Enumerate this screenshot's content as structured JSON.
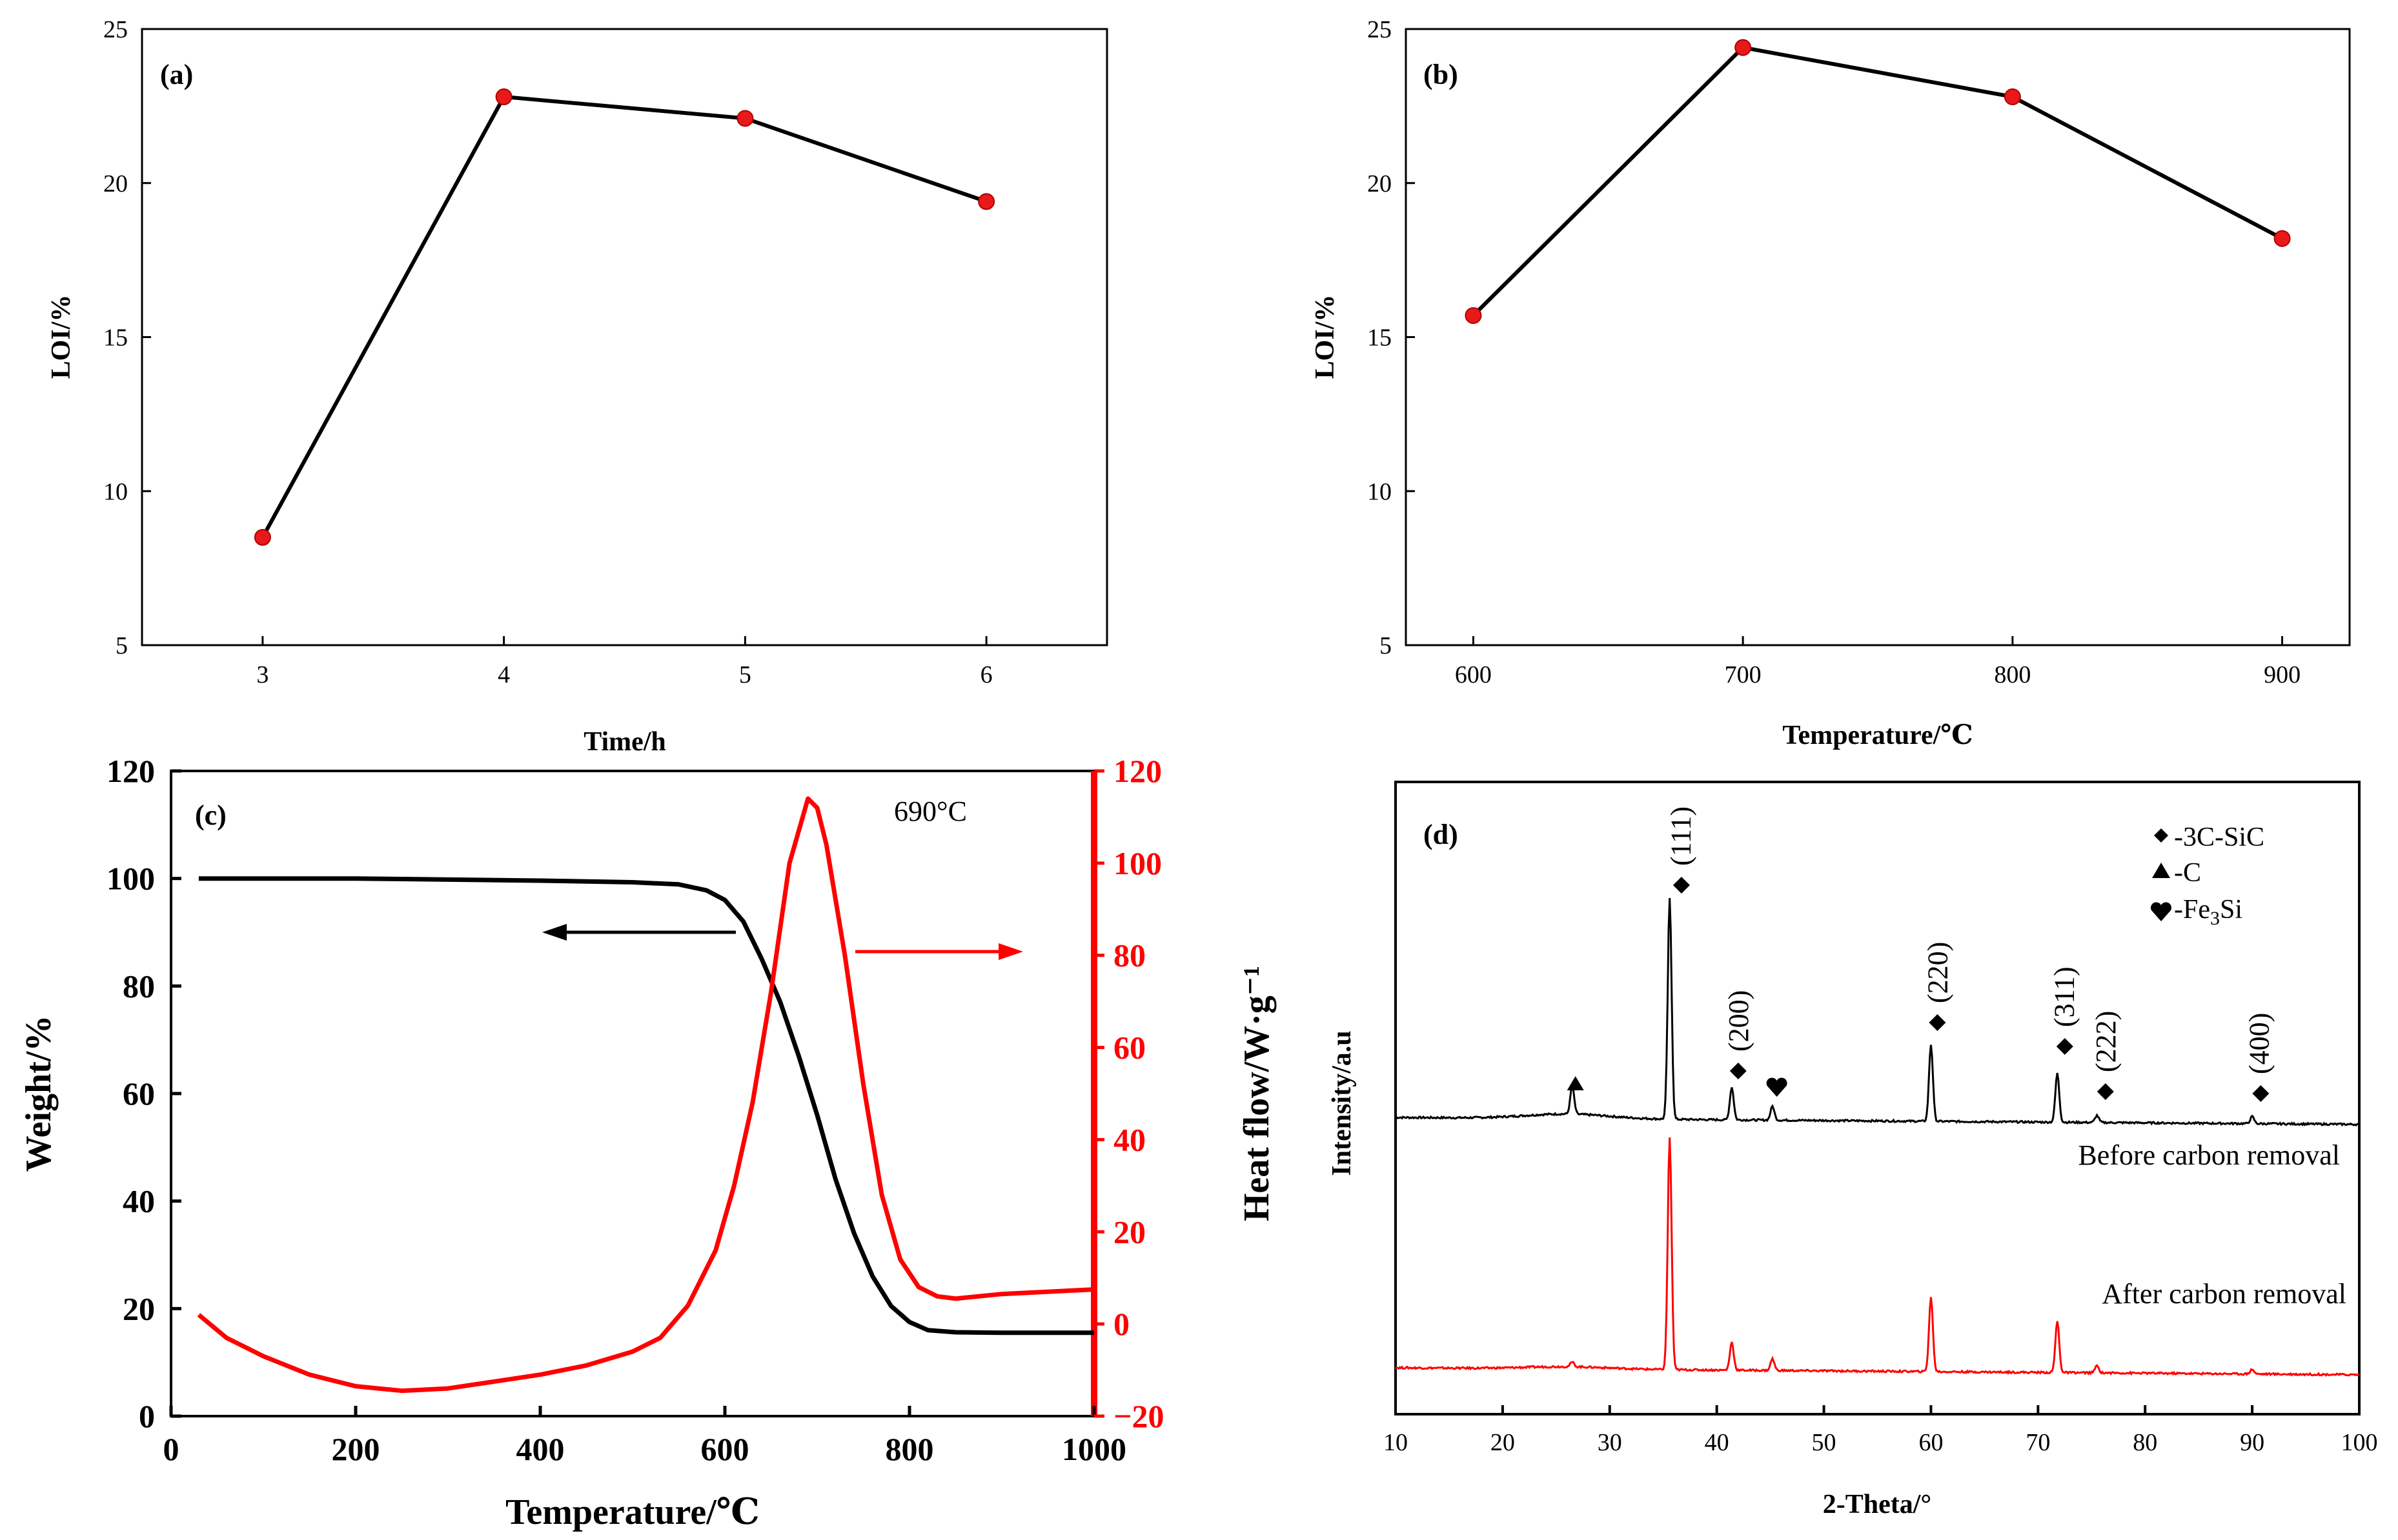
{
  "colors": {
    "line": "#000000",
    "accent": "#ff0000",
    "marker": "#e8191a"
  },
  "chart_data": [
    {
      "id": "a",
      "type": "line",
      "panel_label": "(a)",
      "xlabel": "Time/h",
      "ylabel": "LOI/%",
      "x": [
        3,
        4,
        5,
        6
      ],
      "y": [
        8.5,
        22.8,
        22.1,
        19.4
      ],
      "xticks": [
        "3",
        "4",
        "5",
        "6"
      ],
      "yticks": [
        "5",
        "10",
        "15",
        "20",
        "25"
      ],
      "xlim": [
        2.5,
        6.5
      ],
      "ylim": [
        5,
        25
      ]
    },
    {
      "id": "b",
      "type": "line",
      "panel_label": "(b)",
      "xlabel": "Temperature/℃",
      "ylabel": "LOI/%",
      "x": [
        600,
        700,
        800,
        900
      ],
      "y": [
        15.7,
        24.4,
        22.8,
        18.2
      ],
      "xticks": [
        "600",
        "700",
        "800",
        "900"
      ],
      "yticks": [
        "5",
        "10",
        "15",
        "20",
        "25"
      ],
      "xlim": [
        575,
        925
      ],
      "ylim": [
        5,
        25
      ]
    },
    {
      "id": "c",
      "type": "line",
      "panel_label": "(c)",
      "xlabel": "Temperature/℃",
      "ylabel": "Weight/%",
      "ylabel_right": "Heat flow/W·g⁻¹",
      "annotation": "690°C",
      "xticks": [
        "0",
        "200",
        "400",
        "600",
        "800",
        "1000"
      ],
      "yticks": [
        "0",
        "20",
        "40",
        "60",
        "80",
        "100",
        "120"
      ],
      "yticks_right": [
        "−20",
        "0",
        "20",
        "40",
        "60",
        "80",
        "100",
        "120"
      ],
      "xlim": [
        0,
        1000
      ],
      "ylim": [
        0,
        120
      ],
      "ylim_right": [
        -20,
        120
      ],
      "series": [
        {
          "name": "Weight",
          "axis": "left",
          "x": [
            30,
            200,
            400,
            500,
            550,
            580,
            600,
            620,
            640,
            660,
            680,
            700,
            720,
            740,
            760,
            780,
            800,
            820,
            850,
            900,
            1000
          ],
          "y": [
            100,
            100,
            99.6,
            99.3,
            98.9,
            97.8,
            96,
            92,
            85,
            77,
            67,
            56,
            44,
            34,
            26,
            20.5,
            17.5,
            16,
            15.6,
            15.5,
            15.5
          ]
        },
        {
          "name": "Heat flow",
          "axis": "right",
          "x": [
            30,
            60,
            100,
            150,
            200,
            250,
            300,
            350,
            400,
            450,
            500,
            530,
            560,
            590,
            610,
            630,
            650,
            670,
            690,
            700,
            710,
            730,
            750,
            770,
            790,
            810,
            830,
            850,
            900,
            1000
          ],
          "y": [
            2,
            -3,
            -7,
            -11,
            -13.5,
            -14.5,
            -14,
            -12.5,
            -11,
            -9,
            -6,
            -3,
            4,
            16,
            30,
            48,
            72,
            100,
            114,
            112,
            104,
            80,
            52,
            28,
            14,
            8,
            6,
            5.5,
            6.5,
            7.5
          ]
        }
      ]
    },
    {
      "id": "d",
      "type": "line",
      "panel_label": "(d)",
      "xlabel": "2-Theta/°",
      "ylabel": "Intensity/a.u",
      "xticks": [
        "10",
        "20",
        "30",
        "40",
        "50",
        "60",
        "70",
        "80",
        "90",
        "100"
      ],
      "xlim": [
        10,
        100
      ],
      "legend": [
        "-3C-SiC",
        "-C",
        "-Fe3Si"
      ],
      "peak_labels": [
        "(111)",
        "(200)",
        "(220)",
        "(311)",
        "(222)",
        "(400)"
      ],
      "peak_positions": [
        35.6,
        41.4,
        60.0,
        71.8,
        75.5,
        90.0
      ],
      "series": [
        {
          "name": "Before carbon removal",
          "peaks": [
            [
              26.5,
              0.12
            ],
            [
              35.6,
              0.95
            ],
            [
              41.4,
              0.14
            ],
            [
              45.2,
              0.06
            ],
            [
              60.0,
              0.33
            ],
            [
              71.8,
              0.21
            ],
            [
              75.5,
              0.03
            ],
            [
              90.0,
              0.03
            ]
          ]
        },
        {
          "name": "After carbon removal",
          "peaks": [
            [
              26.5,
              0.02
            ],
            [
              35.6,
              1.0
            ],
            [
              41.4,
              0.12
            ],
            [
              45.2,
              0.05
            ],
            [
              60.0,
              0.32
            ],
            [
              71.8,
              0.22
            ],
            [
              75.5,
              0.03
            ],
            [
              90.0,
              0.02
            ]
          ]
        }
      ]
    }
  ]
}
